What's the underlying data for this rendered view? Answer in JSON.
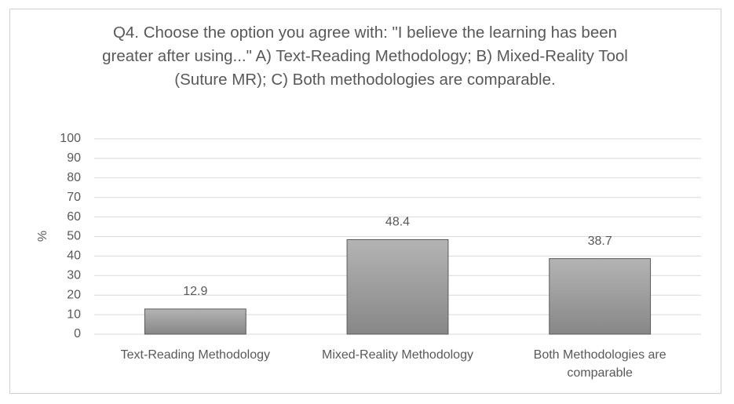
{
  "chart_data": {
    "type": "bar",
    "title": "Q4. Choose the option you agree with: \"I believe the learning has been greater after using...\" A) Text-Reading Methodology; B) Mixed-Reality Tool (Suture MR); C) Both methodologies are comparable.",
    "y_label": "%",
    "categories": [
      "Text-Reading Methodology",
      "Mixed-Reality Methodology",
      "Both Methodologies are comparable"
    ],
    "values": [
      12.9,
      48.4,
      38.7
    ],
    "color": "#9e9e9e",
    "ylim": [
      0,
      100
    ],
    "yticks": [
      0,
      10,
      20,
      30,
      40,
      50,
      60,
      70,
      80,
      90,
      100
    ],
    "grid": true
  }
}
